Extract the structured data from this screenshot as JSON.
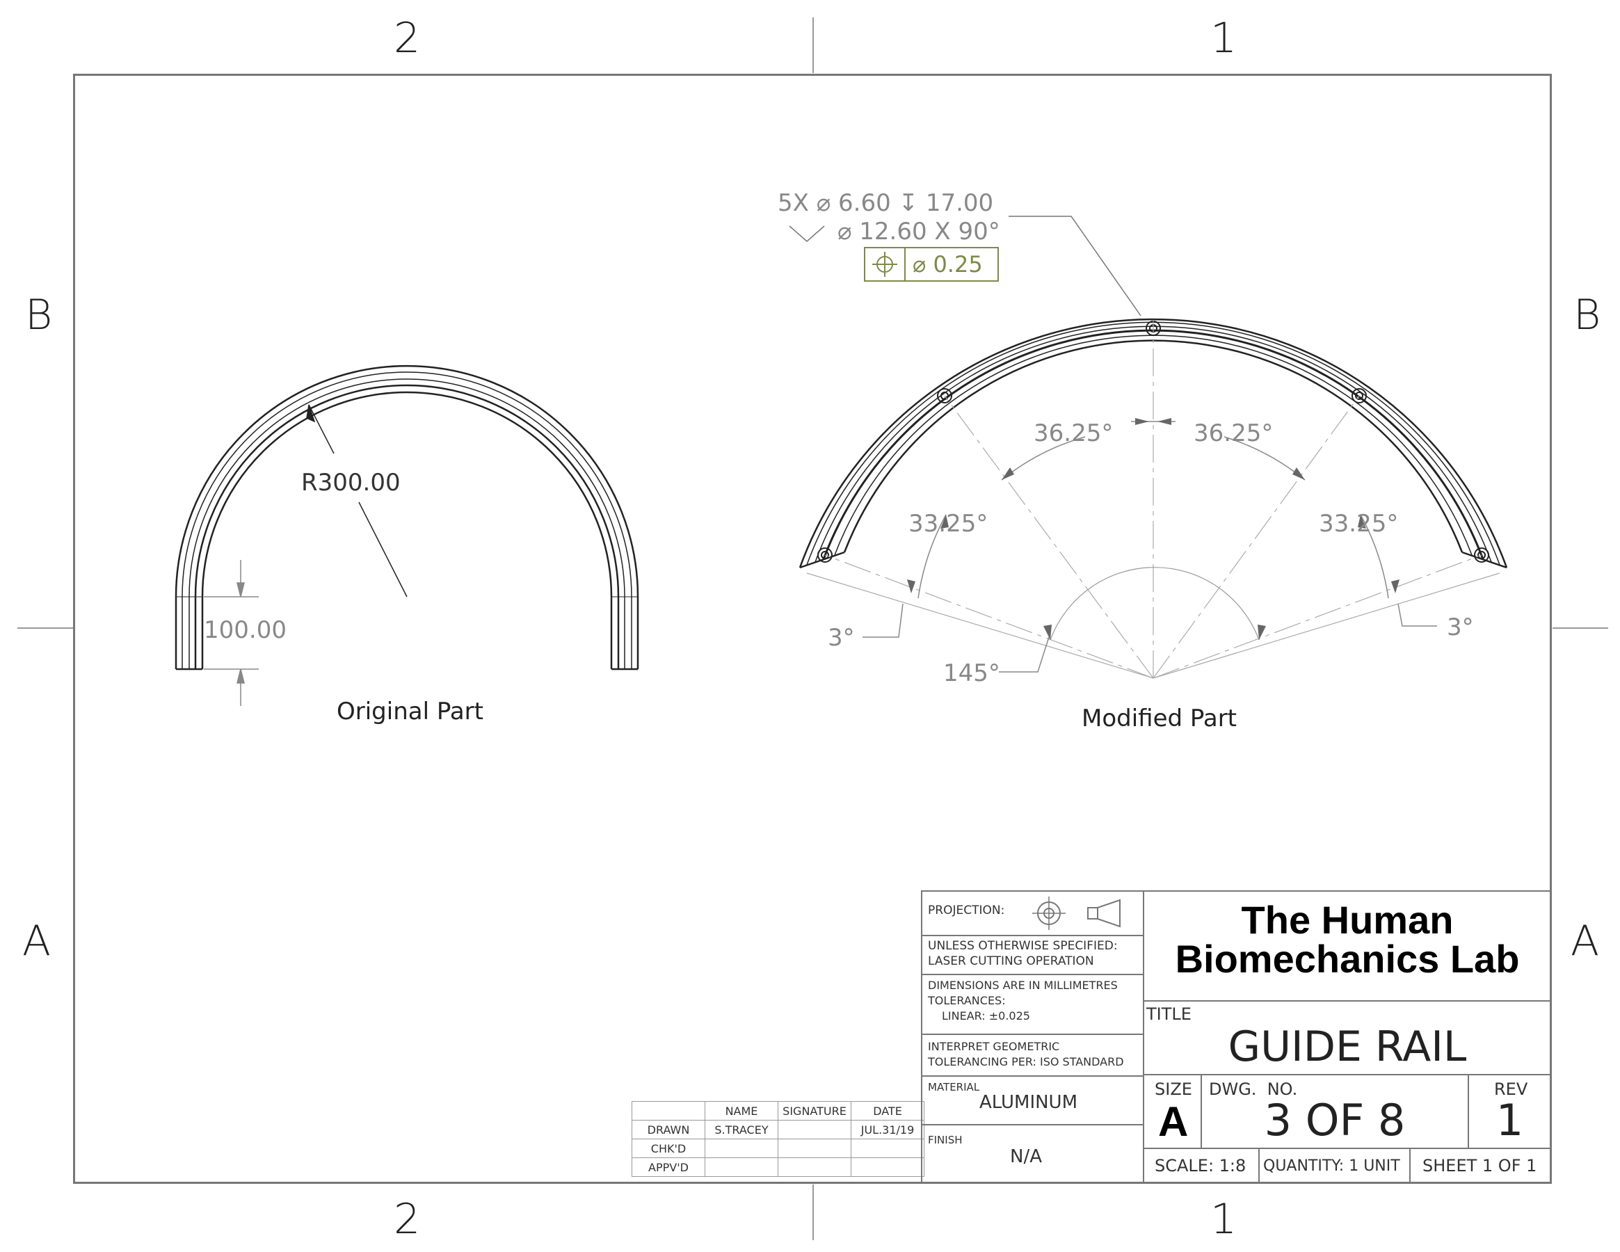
{
  "zones": {
    "top_left": "2",
    "top_right": "1",
    "bottom_left": "2",
    "bottom_right": "1",
    "left_top": "B",
    "left_bottom": "A",
    "right_top": "B",
    "right_bottom": "A"
  },
  "original_part": {
    "caption": "Original Part",
    "radius_label": "R300.00",
    "length_label": "100.00"
  },
  "modified_part": {
    "caption": "Modified Part",
    "hole_callout_line1": "5X ⌀ 6.60 ↧ 17.00",
    "hole_callout_line2": "⌀ 12.60 X 90°",
    "tolerance_value": "⌀ 0.25",
    "angle_inner_left": "36.25°",
    "angle_inner_right": "36.25°",
    "angle_outer_left": "33.25°",
    "angle_outer_right": "33.25°",
    "angle_end_left": "3°",
    "angle_end_right": "3°",
    "angle_total": "145°"
  },
  "title_block": {
    "projection_label": "PROJECTION:",
    "unless_line1": "UNLESS OTHERWISE SPECIFIED:",
    "unless_line2": "LASER CUTTING OPERATION",
    "dims_line1": "DIMENSIONS ARE IN MILLIMETRES",
    "dims_line2": "TOLERANCES:",
    "dims_line3": "LINEAR: ±0.025",
    "interpret_line1": "INTERPRET GEOMETRIC",
    "interpret_line2": "TOLERANCING PER: ISO STANDARD",
    "material_label": "MATERIAL",
    "material_value": "ALUMINUM",
    "finish_label": "FINISH",
    "finish_value": "N/A",
    "company_line1": "The Human",
    "company_line2": "Biomechanics Lab",
    "title_label": "TITLE",
    "title_value": "GUIDE RAIL",
    "size_label": "SIZE",
    "size_value": "A",
    "dwg_label": "DWG.  NO.",
    "dwg_value": "3 OF 8",
    "rev_label": "REV",
    "rev_value": "1",
    "scale": "SCALE: 1:8",
    "quantity": "QUANTITY: 1 UNIT",
    "sheet": "SHEET 1 OF 1"
  },
  "signature_table": {
    "headers": [
      "",
      "NAME",
      "SIGNATURE",
      "DATE"
    ],
    "rows": [
      [
        "DRAWN",
        "S.TRACEY",
        "",
        "JUL.31/19"
      ],
      [
        "CHK'D",
        "",
        "",
        ""
      ],
      [
        "APPV'D",
        "",
        "",
        ""
      ]
    ]
  }
}
